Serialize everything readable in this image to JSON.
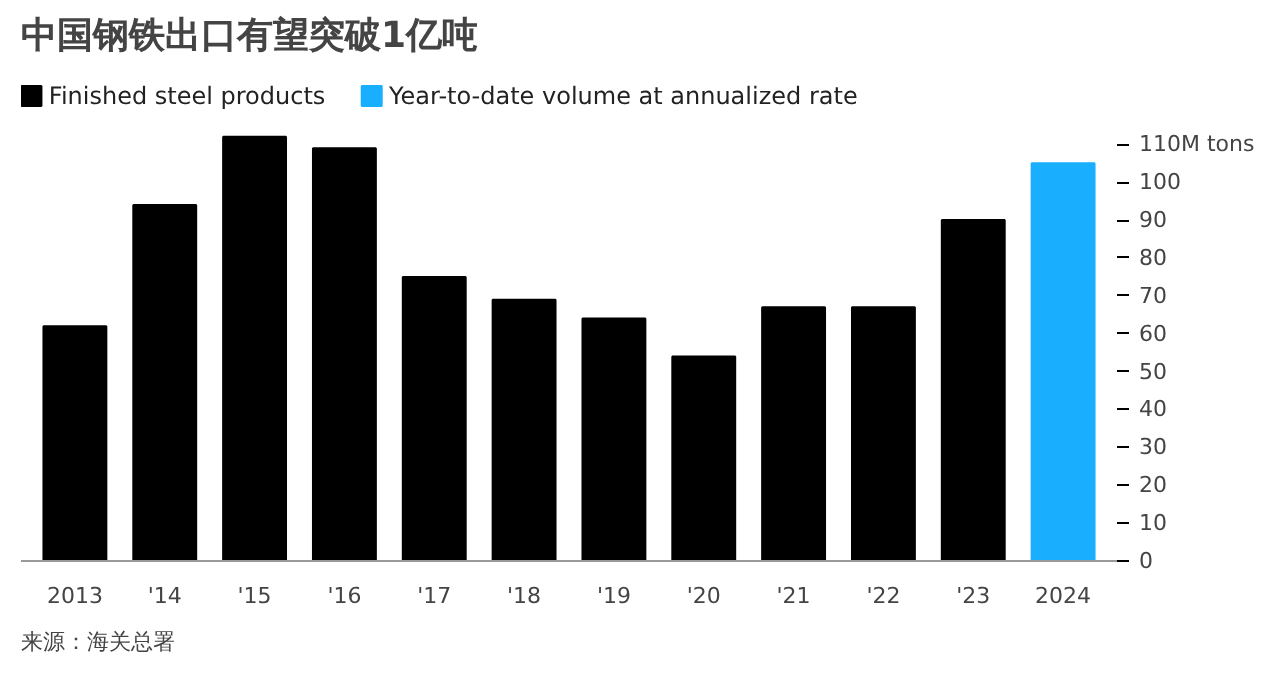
{
  "chart_data": {
    "type": "bar",
    "title": "中国钢铁出口有望突破1亿吨",
    "categories": [
      "2013",
      "'14",
      "'15",
      "'16",
      "'17",
      "'18",
      "'19",
      "'20",
      "'21",
      "'22",
      "'23",
      "2024"
    ],
    "series": [
      {
        "name": "Finished steel products",
        "color": "#000000",
        "values": [
          62,
          94,
          112,
          109,
          75,
          69,
          64,
          54,
          67,
          67,
          90,
          null
        ]
      },
      {
        "name": "Year-to-date volume at annualized rate",
        "color": "#1aaeff",
        "values": [
          null,
          null,
          null,
          null,
          null,
          null,
          null,
          null,
          null,
          null,
          null,
          105
        ]
      }
    ],
    "ylim": [
      0,
      113
    ],
    "yticks": [
      0,
      10,
      20,
      30,
      40,
      50,
      60,
      70,
      80,
      90,
      100,
      {
        "value": 110,
        "label": "110M tons"
      }
    ],
    "grid": false,
    "legend": "top left",
    "annotations": [
      "来源：海关总署"
    ]
  }
}
